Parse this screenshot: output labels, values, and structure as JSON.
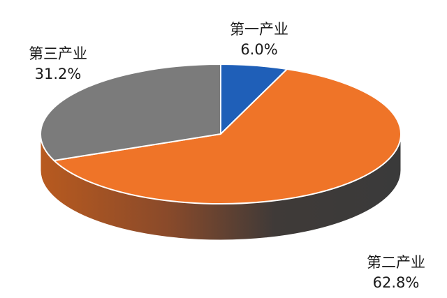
{
  "chart_data": {
    "type": "pie",
    "style": "3d",
    "slices": [
      {
        "label": "第一产业",
        "value": 6.0,
        "value_label": "6.0%",
        "color": "#1f5fb8"
      },
      {
        "label": "第二产业",
        "value": 62.8,
        "value_label": "62.8%",
        "color": "#ef7428"
      },
      {
        "label": "第三产业",
        "value": 31.2,
        "value_label": "31.2%",
        "color": "#7b7b7b"
      }
    ]
  }
}
